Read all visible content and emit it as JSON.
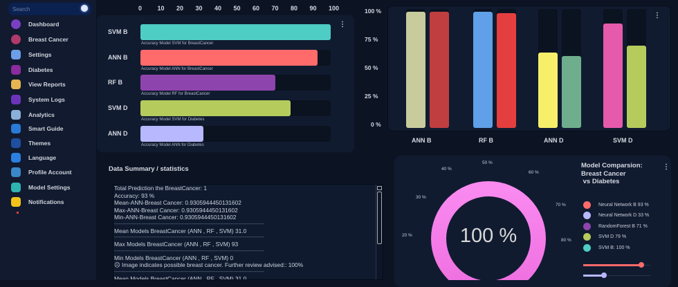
{
  "sidebar": {
    "search_placeholder": "Search",
    "items": [
      {
        "label": "Dashboard",
        "icon": "dashboard-icon",
        "color": "#7b3fc4"
      },
      {
        "label": "Breast Cancer",
        "icon": "ribbon-icon",
        "color": "#b03a6a"
      },
      {
        "label": "Settings",
        "icon": "gear-icon",
        "color": "#6c9ee8"
      },
      {
        "label": "Diabetes",
        "icon": "blood-drop-icon",
        "color": "#8a2b9e"
      },
      {
        "label": "View Reports",
        "icon": "report-icon",
        "color": "#e6b450"
      },
      {
        "label": "System Logs",
        "icon": "logs-icon",
        "color": "#6a35b8"
      },
      {
        "label": "Analytics",
        "icon": "analytics-icon",
        "color": "#8ab0d8"
      },
      {
        "label": "Smart Guide",
        "icon": "guide-icon",
        "color": "#2a7ad6"
      },
      {
        "label": "Themes",
        "icon": "themes-icon",
        "color": "#1f4f9e"
      },
      {
        "label": "Language",
        "icon": "language-icon",
        "color": "#2b7fe0"
      },
      {
        "label": "Profile Account",
        "icon": "profile-icon",
        "color": "#3a88c8"
      },
      {
        "label": "Model Settings",
        "icon": "model-settings-icon",
        "color": "#2fb4b0"
      },
      {
        "label": "Notifications",
        "icon": "bell-icon",
        "color": "#f2c21a"
      }
    ]
  },
  "chart_data": [
    {
      "type": "bar",
      "orientation": "horizontal",
      "xlim": [
        0,
        100
      ],
      "ticks": [
        "0",
        "10",
        "20",
        "30",
        "40",
        "50",
        "60",
        "70",
        "80",
        "90",
        "100"
      ],
      "categories": [
        "SVM B",
        "ANN B",
        "RF B",
        "SVM D",
        "ANN D"
      ],
      "values": [
        100,
        93,
        71,
        79,
        33
      ],
      "captions": [
        "Accuracy Model SVM for BreastCancer",
        "Accuracy Model ANN for BreastCancer",
        "Accuracy Model RF for BreastCancer",
        "Accuracy Model SVM for Diabetes",
        "Accuracy Model ANN for Diabetes"
      ],
      "colors": [
        "#4ecdc4",
        "#ff6b6b",
        "#8e44ad",
        "#b5cc5c",
        "#b8b8ff"
      ]
    },
    {
      "type": "bar",
      "orientation": "vertical",
      "ylim": [
        0,
        100
      ],
      "ticks": [
        "100 %",
        "75 %",
        "50 %",
        "25 %",
        "0 %"
      ],
      "categories": [
        "ANN B",
        "RF B",
        "ANN D",
        "SVM D"
      ],
      "values": [
        [
          100,
          100
        ],
        [
          100,
          99
        ],
        [
          65,
          62
        ],
        [
          90,
          71
        ]
      ],
      "colors": [
        [
          "#c8cb9c",
          "#c03e40"
        ],
        [
          "#5fa0e8",
          "#e53e3e"
        ],
        [
          "#f7ef6a",
          "#6fae8c"
        ],
        [
          "#e65aac",
          "#b5cc5c"
        ]
      ]
    },
    {
      "type": "pie",
      "variant": "radial-gauge",
      "center_label": "100 %",
      "title": "Model Comparsion: Breast Cancer\n vs Diabetes",
      "scale_labels": [
        "20 %",
        "30 %",
        "40 %",
        "50 %",
        "60 %",
        "70 %",
        "80 %"
      ],
      "legend": [
        "Neural Network B 93 %",
        "Neural Network D 33 %",
        "RandomForest B 71 %",
        "SVM D 79 %",
        "SVM B: 100 %"
      ],
      "legend_colors": [
        "#ff6b6b",
        "#b8b8ff",
        "#8e44ad",
        "#b5cc5c",
        "#4ecdc4"
      ],
      "slider_values": [
        93,
        33
      ],
      "ring_color": "#f77ce8"
    }
  ],
  "summary": {
    "title": "Data Summary / statistics",
    "lines": [
      "Total Prediction the BreastCancer: 1",
      "Accuracy: 93 %",
      "Mean-ANN-Breast Cancer: 0.9305944450131602",
      "Max-ANN-Breast Cancer: 0.9305944450131602",
      "Min-ANN-Breast Cancer: 0.9305944450131602",
      "---------------------------------------------------------------------------------------------",
      "Mean Models BreastCancer (ANN , RF , SVM) 31.0",
      "---------------------------------------------------------------------------------------------",
      "Max Models BreastCancer (ANN , RF , SVM) 93",
      "---------------------------------------------------------------------------------------------",
      "Min Models BreastCancer (ANN , RF , SVM) 0",
      "☹ Image indicates possible breast cancer. Further review advised:: 100%",
      "---------------------------------------------------------------------------------------------",
      "Mean Models BreastCancer (ANN , RF , SVM) 31.0"
    ]
  },
  "menu_icon": "⋮"
}
